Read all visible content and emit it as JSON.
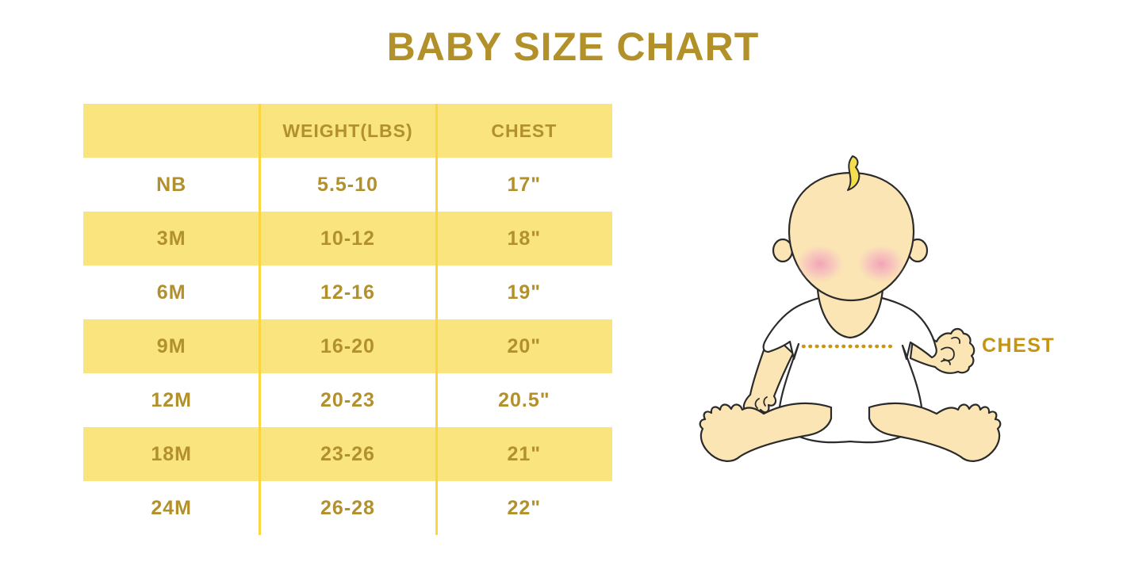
{
  "title": "BABY SIZE CHART",
  "table": {
    "columns": [
      "",
      "WEIGHT(LBS)",
      "CHEST"
    ],
    "rows": [
      {
        "size": "NB",
        "weight": "5.5-10",
        "chest": "17\""
      },
      {
        "size": "3M",
        "weight": "10-12",
        "chest": "18\""
      },
      {
        "size": "6M",
        "weight": "12-16",
        "chest": "19\""
      },
      {
        "size": "9M",
        "weight": "16-20",
        "chest": "20\""
      },
      {
        "size": "12M",
        "weight": "20-23",
        "chest": "20.5\""
      },
      {
        "size": "18M",
        "weight": "23-26",
        "chest": "21\""
      },
      {
        "size": "24M",
        "weight": "26-28",
        "chest": "22\""
      }
    ]
  },
  "chart_data": {
    "type": "table",
    "title": "BABY SIZE CHART",
    "columns": [
      "",
      "WEIGHT(LBS)",
      "CHEST"
    ],
    "rows": [
      [
        "NB",
        "5.5-10",
        "17\""
      ],
      [
        "3M",
        "10-12",
        "18\""
      ],
      [
        "6M",
        "12-16",
        "19\""
      ],
      [
        "9M",
        "16-20",
        "20\""
      ],
      [
        "12M",
        "20-23",
        "20.5\""
      ],
      [
        "18M",
        "23-26",
        "21\""
      ],
      [
        "24M",
        "26-28",
        "22\""
      ]
    ],
    "layout": {
      "alternating_row_fill": true,
      "header_fill": "yellow",
      "text_align": "center"
    }
  },
  "illustration": {
    "chest_label": "CHEST"
  },
  "colors": {
    "title_gold": "#B2912B",
    "table_text_gold": "#B2902C",
    "row_yellow": "#FAE47E",
    "separator_yellow": "#FCD640",
    "chest_label_gold": "#C79412",
    "dotted_line_gold": "#C9960F",
    "baby_skin": "#FBE5B4",
    "baby_cheek_pink": "#F2A9BE",
    "baby_hair_yellow": "#F4DE4E",
    "illustration_outline": "#2B2B2B",
    "background": "#FFFFFF"
  }
}
